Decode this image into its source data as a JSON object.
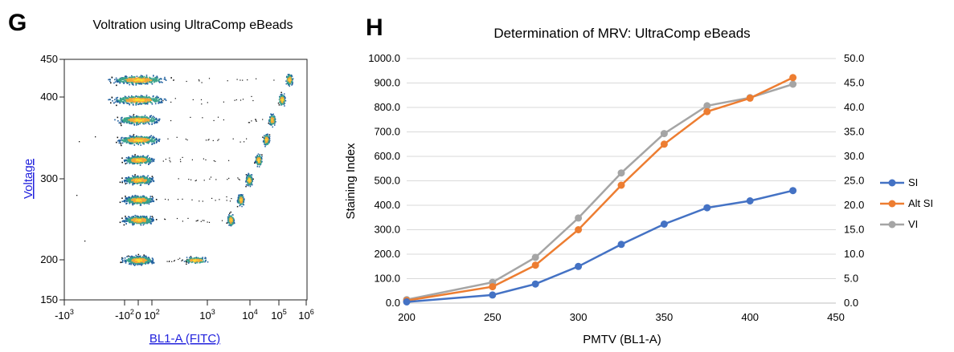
{
  "panelG": {
    "letter": "G",
    "title": "Voltration using UltraComp eBeads",
    "xlabel": "BL1-A (FITC)",
    "ylabel": "Voltage",
    "yticks": [
      "450",
      "400",
      "300",
      "200",
      "150"
    ],
    "xticks": [
      {
        "base": "-10",
        "exp": "3"
      },
      {
        "base": "-10",
        "exp": "2"
      },
      {
        "base": "0",
        "exp": ""
      },
      {
        "base": "10",
        "exp": "2"
      },
      {
        "base": "10",
        "exp": "3"
      },
      {
        "base": "10",
        "exp": "4"
      },
      {
        "base": "10",
        "exp": "5"
      },
      {
        "base": "10",
        "exp": "6"
      }
    ]
  },
  "chart_data": [
    {
      "type": "scatter",
      "title": "Voltration using UltraComp eBeads",
      "xlabel": "BL1-A (FITC)",
      "ylabel": "Voltage",
      "ylim": [
        150,
        450
      ],
      "xscale": "biexponential",
      "populations": [
        {
          "voltage": 200,
          "negative_x": 0,
          "positive_x": 600
        },
        {
          "voltage": 250,
          "negative_x": 0,
          "positive_x": 5000
        },
        {
          "voltage": 275,
          "negative_x": 0,
          "positive_x": 10000
        },
        {
          "voltage": 300,
          "negative_x": 0,
          "positive_x": 18000
        },
        {
          "voltage": 325,
          "negative_x": 0,
          "positive_x": 35000
        },
        {
          "voltage": 350,
          "negative_x": 0,
          "positive_x": 60000
        },
        {
          "voltage": 375,
          "negative_x": 0,
          "positive_x": 90000
        },
        {
          "voltage": 400,
          "negative_x": 0,
          "positive_x": 180000
        },
        {
          "voltage": 425,
          "negative_x": 0,
          "positive_x": 300000
        }
      ]
    },
    {
      "type": "line",
      "letter": "H",
      "title": "Determination of MRV: UltraComp eBeads",
      "xlabel": "PMTV (BL1-A)",
      "ylabel": "Staining Index",
      "xlim": [
        200,
        450
      ],
      "ylim": [
        0,
        1000
      ],
      "y2lim": [
        0,
        50
      ],
      "xticks": [
        "200",
        "250",
        "300",
        "350",
        "400",
        "450"
      ],
      "yticks": [
        "0.0",
        "100.0",
        "200.0",
        "300.0",
        "400.0",
        "500.0",
        "600.0",
        "700.0",
        "800.0",
        "900.0",
        "1000.0"
      ],
      "y2ticks": [
        "0.0",
        "5.0",
        "10.0",
        "15.0",
        "20.0",
        "25.0",
        "30.0",
        "35.0",
        "40.0",
        "45.0",
        "50.0"
      ],
      "x": [
        200,
        250,
        275,
        300,
        325,
        350,
        375,
        400,
        425
      ],
      "series": [
        {
          "name": "SI",
          "color": "#4472C4",
          "values": [
            5,
            33,
            78,
            150,
            240,
            323,
            390,
            418,
            460
          ]
        },
        {
          "name": "Alt SI",
          "color": "#ED7D31",
          "values": [
            10,
            67,
            155,
            300,
            482,
            650,
            783,
            838,
            922
          ]
        },
        {
          "name": "VI",
          "color": "#A5A5A5",
          "values": [
            14,
            85,
            187,
            348,
            532,
            693,
            807,
            840,
            895
          ]
        }
      ],
      "legend": "right"
    }
  ]
}
